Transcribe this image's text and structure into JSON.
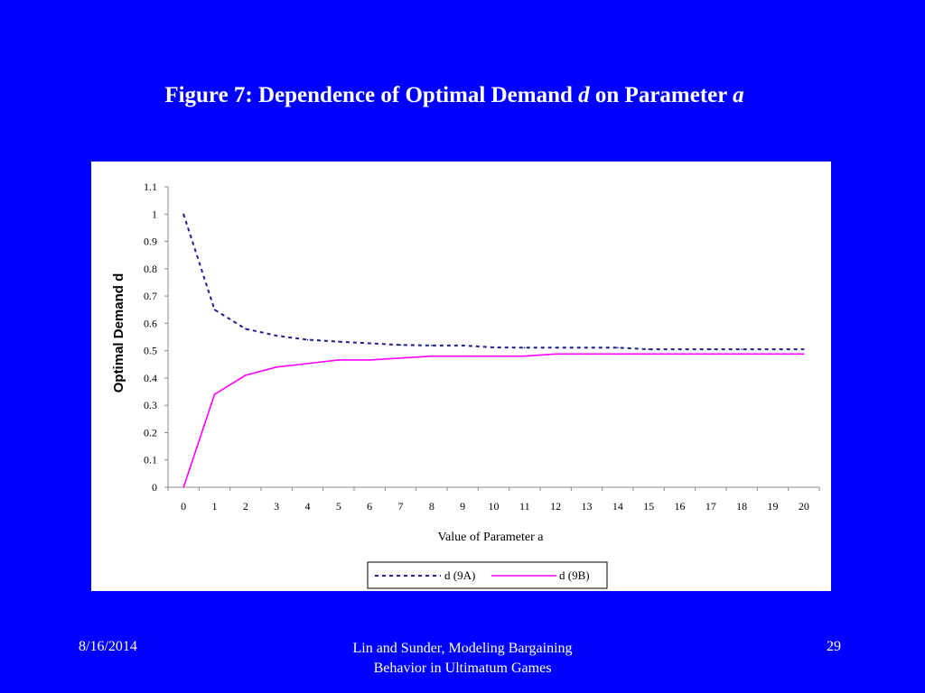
{
  "slide": {
    "title_prefix": "Figure 7: Dependence of Optimal Demand ",
    "title_var1": "d",
    "title_mid": " on Parameter ",
    "title_var2": "a",
    "background_color": "#0000FF"
  },
  "footer": {
    "date": "8/16/2014",
    "citation_line1": "Lin and Sunder, Modeling Bargaining",
    "citation_line2": "Behavior in Ultimatum Games",
    "page_number": "29"
  },
  "chart_data": {
    "type": "line",
    "title": "",
    "xlabel": "Value of Parameter a",
    "ylabel": "Optimal Demand d",
    "categories": [
      "0",
      "1",
      "2",
      "3",
      "4",
      "5",
      "6",
      "7",
      "8",
      "9",
      "10",
      "11",
      "12",
      "13",
      "14",
      "15",
      "16",
      "17",
      "18",
      "19",
      "20"
    ],
    "y_ticks": [
      "0",
      "0.1",
      "0.2",
      "0.3",
      "0.4",
      "0.5",
      "0.6",
      "0.7",
      "0.8",
      "0.9",
      "1",
      "1.1"
    ],
    "ylim": [
      0,
      1.1
    ],
    "grid": false,
    "legend_position": "bottom",
    "series": [
      {
        "name": "d (9A)",
        "style": "dashed",
        "color": "#1F1F8F",
        "values": [
          1.0,
          0.65,
          0.58,
          0.555,
          0.54,
          0.533,
          0.527,
          0.521,
          0.519,
          0.519,
          0.512,
          0.511,
          0.511,
          0.511,
          0.511,
          0.505,
          0.505,
          0.505,
          0.505,
          0.505,
          0.505
        ]
      },
      {
        "name": "d (9B)",
        "style": "solid",
        "color": "#FF00FF",
        "values": [
          0.0,
          0.34,
          0.41,
          0.44,
          0.453,
          0.466,
          0.466,
          0.473,
          0.48,
          0.48,
          0.48,
          0.48,
          0.488,
          0.488,
          0.488,
          0.488,
          0.488,
          0.488,
          0.488,
          0.488,
          0.488
        ]
      }
    ]
  }
}
